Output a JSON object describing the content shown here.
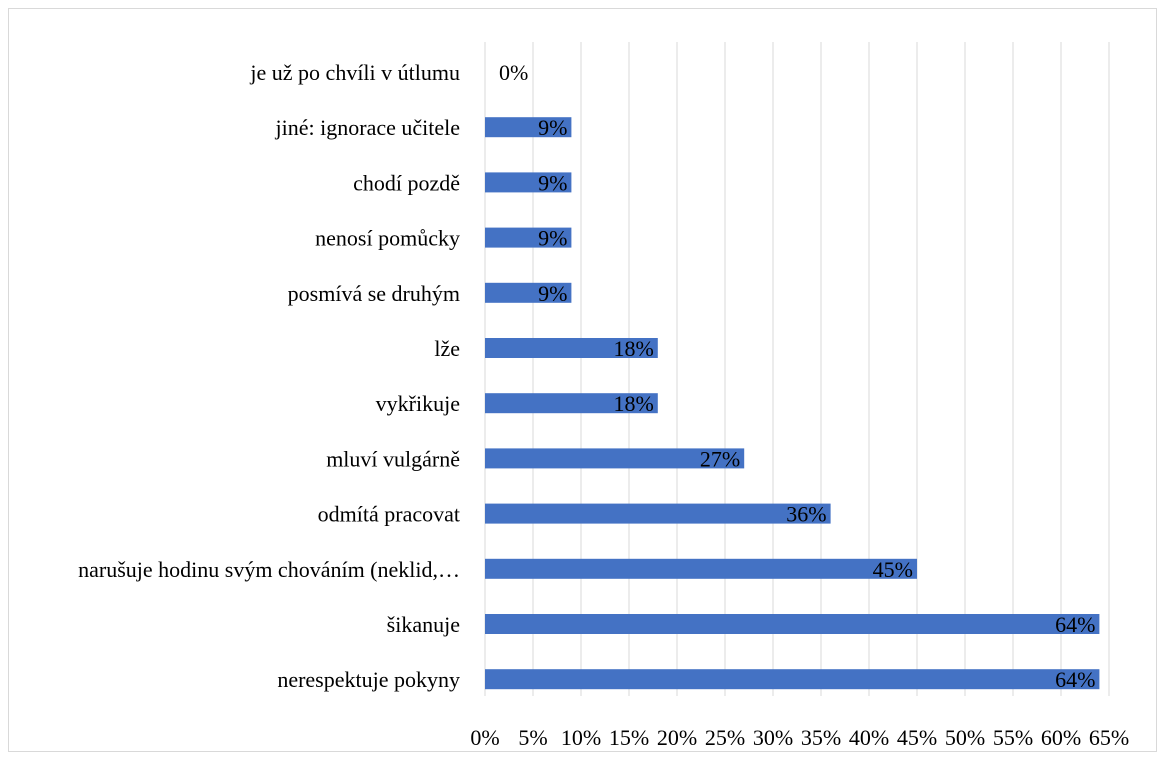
{
  "chart_data": {
    "type": "bar",
    "orientation": "horizontal",
    "title": "",
    "xlabel": "",
    "ylabel": "",
    "xlim": [
      0,
      65
    ],
    "x_ticks": [
      0,
      5,
      10,
      15,
      20,
      25,
      30,
      35,
      40,
      45,
      50,
      55,
      60,
      65
    ],
    "x_tick_labels": [
      "0%",
      "5%",
      "10%",
      "15%",
      "20%",
      "25%",
      "30%",
      "35%",
      "40%",
      "45%",
      "50%",
      "55%",
      "60%",
      "65%"
    ],
    "grid": "vertical",
    "legend": "none",
    "bar_color": "#4472C4",
    "grid_color": "#d9d9d9",
    "categories": [
      "je už po chvíli v útlumu",
      "jiné: ignorace učitele",
      "chodí pozdě",
      "nenosí pomůcky",
      "posmívá se druhým",
      "lže",
      "vykřikuje",
      "mluví vulgárně",
      "odmítá pracovat",
      "narušuje hodinu svým chováním (neklid,…",
      "šikanuje",
      "nerespektuje pokyny"
    ],
    "values": [
      0,
      9,
      9,
      9,
      9,
      18,
      18,
      27,
      36,
      45,
      64,
      64
    ],
    "data_labels": [
      "0%",
      "9%",
      "9%",
      "9%",
      "9%",
      "18%",
      "18%",
      "27%",
      "36%",
      "45%",
      "64%",
      "64%"
    ]
  }
}
